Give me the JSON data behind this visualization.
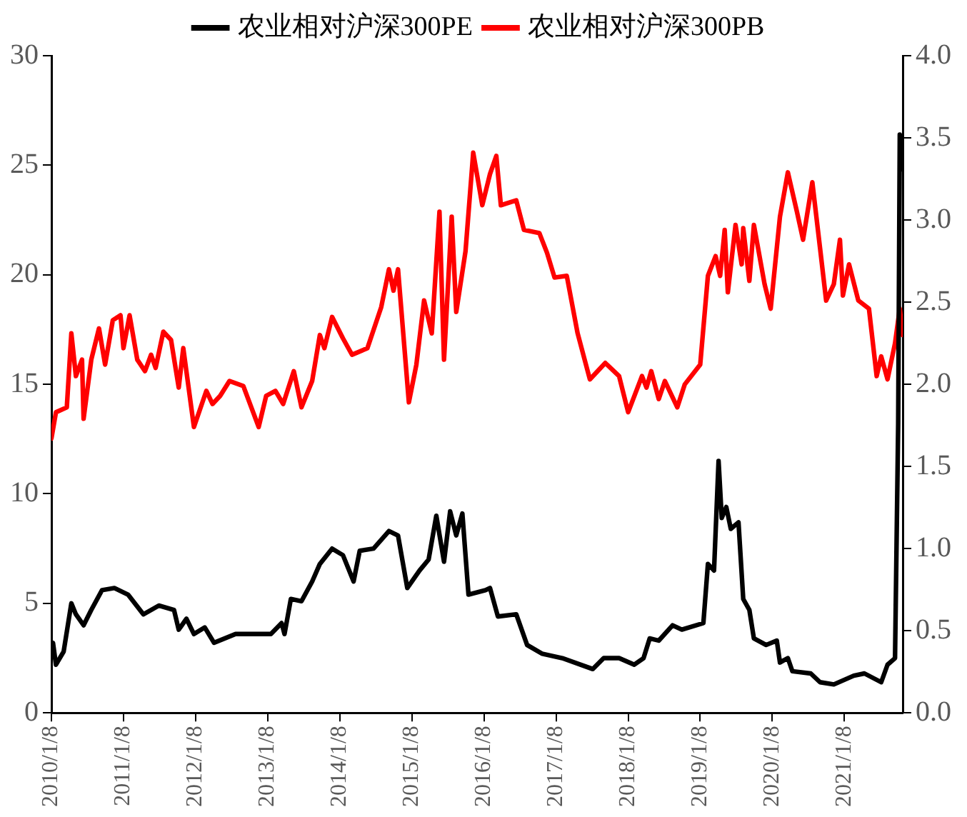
{
  "chart_data": {
    "type": "line",
    "legend": "top",
    "grid": false,
    "marker": "none",
    "line_style": "solid",
    "xlim": [
      "2010-01-08",
      "2021-10-30"
    ],
    "xticks": [
      {
        "value": "2010-01-08",
        "label": "2010/1/8"
      },
      {
        "value": "2011-01-08",
        "label": "2011/1/8"
      },
      {
        "value": "2012-01-08",
        "label": "2012/1/8"
      },
      {
        "value": "2013-01-08",
        "label": "2013/1/8"
      },
      {
        "value": "2014-01-08",
        "label": "2014/1/8"
      },
      {
        "value": "2015-01-08",
        "label": "2015/1/8"
      },
      {
        "value": "2016-01-08",
        "label": "2016/1/8"
      },
      {
        "value": "2017-01-08",
        "label": "2017/1/8"
      },
      {
        "value": "2018-01-08",
        "label": "2018/1/8"
      },
      {
        "value": "2019-01-08",
        "label": "2019/1/8"
      },
      {
        "value": "2020-01-08",
        "label": "2020/1/8"
      },
      {
        "value": "2021-01-08",
        "label": "2021/1/8"
      }
    ],
    "ylim": [
      0,
      30
    ],
    "yticks": [
      0,
      5,
      10,
      15,
      20,
      25,
      30
    ],
    "y2lim": [
      0,
      4
    ],
    "y2ticks": [
      {
        "value": 0,
        "label": "0.0"
      },
      {
        "value": 0.5,
        "label": "0.5"
      },
      {
        "value": 1,
        "label": "1.0"
      },
      {
        "value": 1.5,
        "label": "1.5"
      },
      {
        "value": 2,
        "label": "2.0"
      },
      {
        "value": 2.5,
        "label": "2.5"
      },
      {
        "value": 3,
        "label": "3.0"
      },
      {
        "value": 3.5,
        "label": "3.5"
      },
      {
        "value": 4,
        "label": "4.0"
      }
    ],
    "series": [
      {
        "name": "农业相对沪深300PE",
        "color": "#000000",
        "x": [
          "2010-01-08",
          "2010-01-16",
          "2010-01-31",
          "2010-03-11",
          "2010-04-19",
          "2010-05-12",
          "2010-06-20",
          "2010-07-29",
          "2010-09-21",
          "2010-11-23",
          "2011-01-31",
          "2011-04-19",
          "2011-07-06",
          "2011-09-21",
          "2011-10-15",
          "2011-11-23",
          "2011-12-31",
          "2012-02-24",
          "2012-04-11",
          "2012-07-29",
          "2012-11-07",
          "2013-01-24",
          "2013-03-19",
          "2013-04-03",
          "2013-05-05",
          "2013-06-28",
          "2013-08-21",
          "2013-09-29",
          "2013-11-30",
          "2014-01-24",
          "2014-03-19",
          "2014-04-19",
          "2014-06-28",
          "2014-09-14",
          "2014-10-30",
          "2014-12-16",
          "2015-02-16",
          "2015-04-03",
          "2015-05-12",
          "2015-06-20",
          "2015-07-21",
          "2015-08-21",
          "2015-09-21",
          "2015-10-22",
          "2016-01-16",
          "2016-02-08",
          "2016-03-19",
          "2016-06-20",
          "2016-08-14",
          "2016-10-30",
          "2017-02-08",
          "2017-07-13",
          "2017-09-06",
          "2017-11-23",
          "2018-02-08",
          "2018-03-27",
          "2018-04-27",
          "2018-06-12",
          "2018-08-21",
          "2018-10-07",
          "2019-01-24",
          "2019-02-16",
          "2019-03-19",
          "2019-04-11",
          "2019-04-27",
          "2019-05-20",
          "2019-06-12",
          "2019-07-21",
          "2019-08-14",
          "2019-09-14",
          "2019-10-07",
          "2019-12-08",
          "2020-01-31",
          "2020-02-16",
          "2020-03-27",
          "2020-04-19",
          "2020-07-21",
          "2020-09-06",
          "2020-11-15",
          "2021-02-24",
          "2021-04-19",
          "2021-07-13",
          "2021-08-14",
          "2021-09-21",
          "2021-10-07",
          "2021-10-15",
          "2021-10-22"
        ],
        "values": [
          2.8,
          3.2,
          2.2,
          2.8,
          5.0,
          4.5,
          4.0,
          4.7,
          5.6,
          5.7,
          5.4,
          4.5,
          4.9,
          4.7,
          3.8,
          4.3,
          3.6,
          3.9,
          3.2,
          3.6,
          3.6,
          3.6,
          4.1,
          3.6,
          5.2,
          5.1,
          6.0,
          6.8,
          7.5,
          7.2,
          6.0,
          7.4,
          7.5,
          8.3,
          8.1,
          5.7,
          6.5,
          7.0,
          9.0,
          6.9,
          9.2,
          8.1,
          9.1,
          5.4,
          5.6,
          5.7,
          4.4,
          4.5,
          3.1,
          2.7,
          2.5,
          2.0,
          2.5,
          2.5,
          2.2,
          2.5,
          3.4,
          3.3,
          4.0,
          3.8,
          4.1,
          6.8,
          6.5,
          11.5,
          8.9,
          9.4,
          8.4,
          8.7,
          5.2,
          4.7,
          3.4,
          3.1,
          3.3,
          2.3,
          2.5,
          1.9,
          1.8,
          1.4,
          1.3,
          1.7,
          1.8,
          1.4,
          2.2,
          2.5,
          13.2,
          26.4,
          24.8
        ]
      },
      {
        "name": "农业相对沪深300PB",
        "color": "#ff0000",
        "axis": "y2",
        "x": [
          "2010-01-08",
          "2010-01-31",
          "2010-03-27",
          "2010-04-19",
          "2010-05-12",
          "2010-06-12",
          "2010-06-20",
          "2010-07-29",
          "2010-09-06",
          "2010-10-07",
          "2010-11-15",
          "2010-12-24",
          "2011-01-08",
          "2011-02-08",
          "2011-03-19",
          "2011-04-27",
          "2011-05-28",
          "2011-06-20",
          "2011-07-29",
          "2011-09-06",
          "2011-10-15",
          "2011-11-07",
          "2011-12-31",
          "2012-03-03",
          "2012-04-03",
          "2012-05-12",
          "2012-06-28",
          "2012-09-06",
          "2012-11-23",
          "2012-12-31",
          "2013-02-16",
          "2013-03-27",
          "2013-05-20",
          "2013-06-28",
          "2013-08-21",
          "2013-09-29",
          "2013-10-22",
          "2013-11-30",
          "2014-01-24",
          "2014-03-11",
          "2014-05-28",
          "2014-08-06",
          "2014-09-14",
          "2014-10-07",
          "2014-10-30",
          "2014-12-24",
          "2015-01-31",
          "2015-03-11",
          "2015-04-19",
          "2015-05-28",
          "2015-06-20",
          "2015-07-29",
          "2015-08-21",
          "2015-10-07",
          "2015-11-15",
          "2015-12-31",
          "2016-02-08",
          "2016-03-11",
          "2016-04-03",
          "2016-06-20",
          "2016-07-29",
          "2016-10-15",
          "2016-11-23",
          "2016-12-31",
          "2017-03-03",
          "2017-04-27",
          "2017-06-28",
          "2017-09-14",
          "2017-11-23",
          "2018-01-08",
          "2018-03-19",
          "2018-04-11",
          "2018-05-05",
          "2018-06-12",
          "2018-07-13",
          "2018-09-14",
          "2018-10-22",
          "2019-01-08",
          "2019-02-16",
          "2019-03-27",
          "2019-04-19",
          "2019-05-12",
          "2019-05-28",
          "2019-07-06",
          "2019-08-06",
          "2019-08-14",
          "2019-09-14",
          "2019-10-07",
          "2019-11-30",
          "2019-12-31",
          "2020-02-16",
          "2020-03-27",
          "2020-05-12",
          "2020-06-12",
          "2020-07-29",
          "2020-09-06",
          "2020-10-07",
          "2020-11-15",
          "2020-12-16",
          "2020-12-31",
          "2021-01-31",
          "2021-03-19",
          "2021-05-12",
          "2021-06-20",
          "2021-07-13",
          "2021-08-14",
          "2021-09-21",
          "2021-10-15",
          "2021-10-30"
        ],
        "values": [
          1.67,
          1.83,
          1.86,
          2.31,
          2.05,
          2.15,
          1.79,
          2.15,
          2.34,
          2.12,
          2.39,
          2.42,
          2.22,
          2.42,
          2.15,
          2.08,
          2.18,
          2.1,
          2.32,
          2.27,
          1.98,
          2.22,
          1.74,
          1.96,
          1.88,
          1.93,
          2.02,
          1.99,
          1.74,
          1.93,
          1.96,
          1.88,
          2.08,
          1.86,
          2.02,
          2.3,
          2.22,
          2.41,
          2.28,
          2.18,
          2.22,
          2.47,
          2.7,
          2.57,
          2.7,
          1.89,
          2.12,
          2.51,
          2.31,
          3.05,
          2.15,
          3.02,
          2.44,
          2.81,
          3.41,
          3.09,
          3.28,
          3.39,
          3.09,
          3.12,
          2.94,
          2.92,
          2.8,
          2.65,
          2.66,
          2.31,
          2.03,
          2.13,
          2.05,
          1.83,
          2.05,
          1.98,
          2.08,
          1.91,
          2.02,
          1.86,
          2.0,
          2.12,
          2.66,
          2.78,
          2.66,
          2.94,
          2.56,
          2.97,
          2.73,
          2.95,
          2.63,
          2.97,
          2.61,
          2.46,
          3.02,
          3.29,
          3.05,
          2.88,
          3.23,
          2.83,
          2.51,
          2.61,
          2.88,
          2.54,
          2.73,
          2.51,
          2.46,
          2.05,
          2.17,
          2.03,
          2.25,
          2.46,
          2.3
        ]
      }
    ]
  }
}
